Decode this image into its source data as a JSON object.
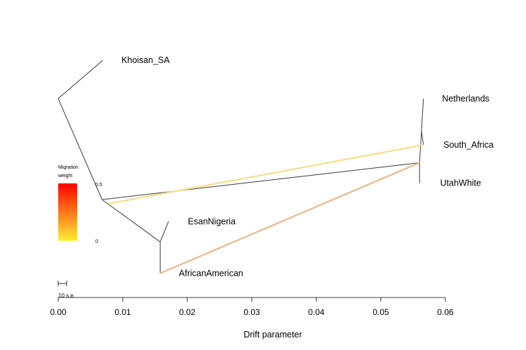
{
  "chart_data": {
    "type": "tree",
    "xlabel": "Drift parameter",
    "xlim": [
      0,
      0.06
    ],
    "x_ticks": [
      "0.00",
      "0.01",
      "0.02",
      "0.03",
      "0.04",
      "0.05",
      "0.06"
    ],
    "y_range": [
      -1,
      1
    ],
    "nodes": [
      {
        "id": "root",
        "x": 0.0,
        "y": 0.56
      },
      {
        "id": "n_main",
        "x": 0.0068,
        "y": -0.18
      },
      {
        "id": "n_aa",
        "x": 0.0158,
        "y": -0.49
      },
      {
        "id": "n_eu",
        "x": 0.056,
        "y": 0.09
      },
      {
        "id": "n_sa",
        "x": 0.0563,
        "y": 0.32
      }
    ],
    "leaves": [
      {
        "id": "khoisan",
        "label": "Khoisan_SA",
        "x": 0.0069,
        "y": 0.84,
        "label_x": 0.0098
      },
      {
        "id": "esan",
        "label": "EsanNigeria",
        "x": 0.0171,
        "y": -0.34,
        "label_x": 0.0201
      },
      {
        "id": "aa",
        "label": "AfricanAmerican",
        "x": 0.0158,
        "y": -0.72,
        "label_x": 0.0187
      },
      {
        "id": "nl",
        "label": "Netherlands",
        "x": 0.0566,
        "y": 0.56,
        "label_x": 0.0595
      },
      {
        "id": "saf",
        "label": "South_Africa",
        "x": 0.0566,
        "y": 0.22,
        "label_x": 0.0597
      },
      {
        "id": "utah",
        "label": "UtahWhite",
        "x": 0.056,
        "y": -0.06,
        "label_x": 0.0592
      }
    ],
    "edges": [
      {
        "from": "root",
        "to": "khoisan"
      },
      {
        "from": "root",
        "to": "n_main"
      },
      {
        "from": "n_main",
        "to": "n_eu"
      },
      {
        "from": "n_main",
        "to": "n_aa"
      },
      {
        "from": "n_aa",
        "to": "esan"
      },
      {
        "from": "n_aa",
        "to": "aa"
      },
      {
        "from": "n_eu",
        "to": "utah"
      },
      {
        "from": "n_eu",
        "to": "n_sa"
      },
      {
        "from": "n_sa",
        "to": "nl"
      },
      {
        "from": "n_sa",
        "to": "saf"
      }
    ],
    "migrations": [
      {
        "from_x": 0.0078,
        "from_y": -0.21,
        "to": "saf",
        "weight": 0.22,
        "color": "#f5de8c"
      },
      {
        "from": "n_eu",
        "to": "aa",
        "weight": 0.38,
        "color": "#eab88a"
      }
    ],
    "legend": {
      "title_line1": "Migration",
      "title_line2": "weight",
      "max_label": "0.5",
      "min_label": "0",
      "color_top": "#ff0000",
      "color_bottom": "#ffee33"
    },
    "scale_bar": {
      "label": "10 s.e.",
      "length": 0.0013
    }
  }
}
